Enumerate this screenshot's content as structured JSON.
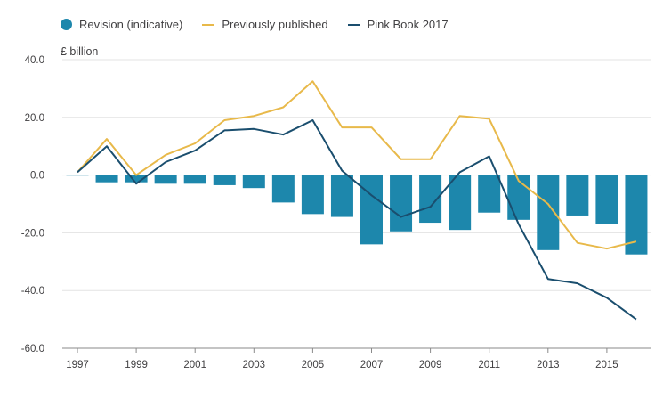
{
  "chart_data": {
    "type": "bar+line",
    "unit_label": "£ billion",
    "ylim": [
      -60,
      40
    ],
    "yticks": [
      40,
      20,
      0,
      -20,
      -40,
      -60
    ],
    "ytick_labels": [
      "40.0",
      "20.0",
      "0.0",
      "-20.0",
      "-40.0",
      "-60.0"
    ],
    "xlim": [
      1997,
      2016
    ],
    "xtick_labels": [
      "1997",
      "1999",
      "2001",
      "2003",
      "2005",
      "2007",
      "2009",
      "2011",
      "2013",
      "2015"
    ],
    "xticks": [
      1997,
      1999,
      2001,
      2003,
      2005,
      2007,
      2009,
      2011,
      2013,
      2015
    ],
    "years": [
      1997,
      1998,
      1999,
      2000,
      2001,
      2002,
      2003,
      2004,
      2005,
      2006,
      2007,
      2008,
      2009,
      2010,
      2011,
      2012,
      2013,
      2014,
      2015,
      2016
    ],
    "series": [
      {
        "name": "Revision (indicative)",
        "kind": "bar",
        "color": "#1d87ac",
        "values": [
          0,
          -2.5,
          -2.5,
          -3,
          -3,
          -3.5,
          -4.5,
          -9.5,
          -13.5,
          -14.5,
          -24,
          -19.5,
          -16.5,
          -19,
          -13,
          -15.5,
          -26,
          -14,
          -17,
          -27.5
        ]
      },
      {
        "name": "Previously published",
        "kind": "line",
        "color": "#e8b94a",
        "values": [
          1,
          12.5,
          0,
          7,
          11,
          19,
          20.5,
          23.5,
          32.5,
          16.5,
          16.5,
          5.5,
          5.5,
          20.5,
          19.5,
          -2,
          -10,
          -23.5,
          -25.5,
          -23
        ]
      },
      {
        "name": "Pink Book 2017",
        "kind": "line",
        "color": "#1a4e6e",
        "values": [
          1,
          10,
          -3,
          4.5,
          8.5,
          15.5,
          16,
          14,
          19,
          1.5,
          -7,
          -14.5,
          -11,
          1,
          6.5,
          -17,
          -36,
          -37.5,
          -42.5,
          -50
        ]
      }
    ]
  }
}
